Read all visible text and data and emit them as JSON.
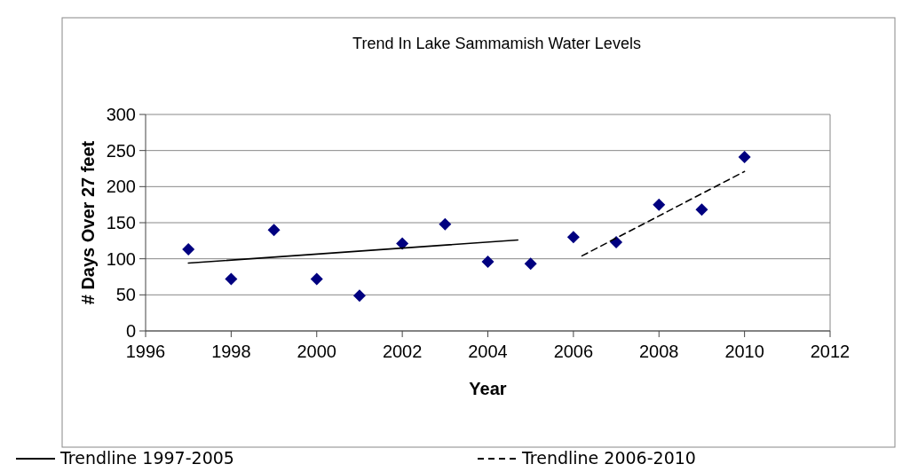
{
  "chart_data": {
    "type": "scatter",
    "title": "Trend In Lake Sammamish Water Levels",
    "xlabel": "Year",
    "ylabel": "# Days Over 27 feet",
    "xlim": [
      1996,
      2012
    ],
    "xticks": [
      1996,
      1998,
      2000,
      2002,
      2004,
      2006,
      2008,
      2010,
      2012
    ],
    "ylim": [
      0,
      300
    ],
    "yticks": [
      0,
      50,
      100,
      150,
      200,
      250,
      300
    ],
    "grid": "y",
    "legend": "bottom",
    "series": [
      {
        "color": "#000080",
        "marker": "diamond",
        "x": [
          1997,
          1998,
          1999,
          2000,
          2001,
          2002,
          2003,
          2004,
          2005,
          2006,
          2007,
          2008,
          2009,
          2010
        ],
        "values": [
          113,
          72,
          140,
          72,
          49,
          121,
          148,
          96,
          93,
          130,
          123,
          175,
          168,
          241
        ]
      },
      {
        "type": "line",
        "name": "Trendline 1997-2005",
        "color": "#000000",
        "line_style": "solid",
        "x": [
          1997,
          2004.7
        ],
        "values": [
          94,
          126
        ]
      },
      {
        "type": "line",
        "name": "Trendline 2006-2010",
        "color": "#000000",
        "line_style": "dashed",
        "x": [
          2006.2,
          2010
        ],
        "values": [
          104,
          221
        ]
      }
    ]
  }
}
